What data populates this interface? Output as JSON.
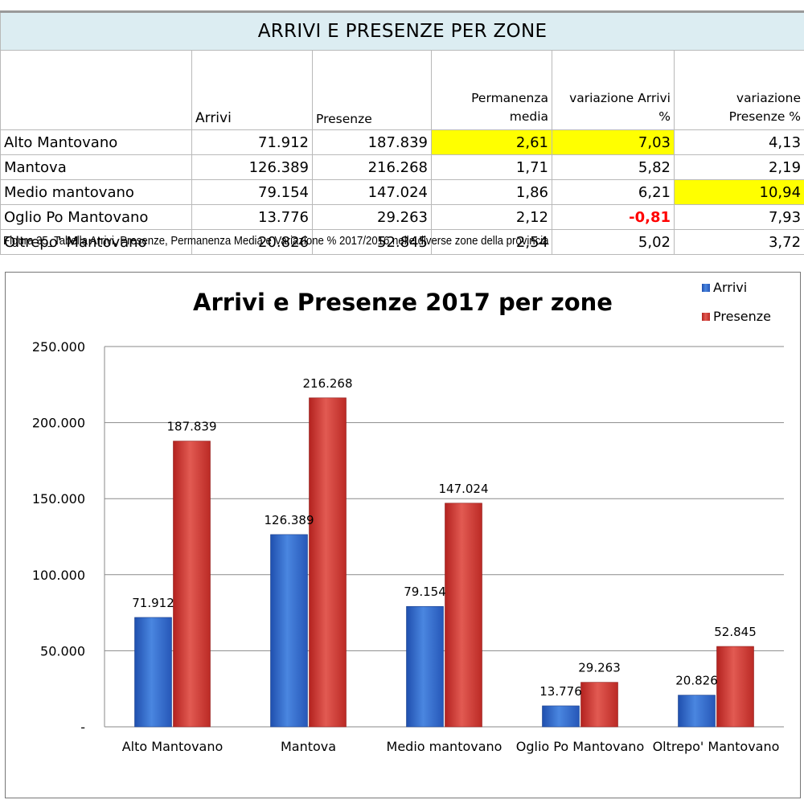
{
  "table": {
    "title": "ARRIVI E PRESENZE  PER ZONE",
    "headers": [
      "",
      "Arrivi",
      "Presenze",
      "Permanenza media",
      "variazione Arrivi %",
      "variazione Presenze %"
    ],
    "header_lines": {
      "permanenza": [
        "Permanenza",
        "media"
      ],
      "var_arrivi": [
        "variazione Arrivi",
        "%"
      ],
      "var_presenze": [
        "variazione",
        "Presenze %"
      ]
    },
    "rows": [
      {
        "zone": "Alto Mantovano",
        "arrivi": "71.912",
        "presenze": "187.839",
        "permanenza": "2,61",
        "var_arrivi": "7,03",
        "var_presenze": "4,13"
      },
      {
        "zone": "Mantova",
        "arrivi": "126.389",
        "presenze": "216.268",
        "permanenza": "1,71",
        "var_arrivi": "5,82",
        "var_presenze": "2,19"
      },
      {
        "zone": "Medio mantovano",
        "arrivi": "79.154",
        "presenze": "147.024",
        "permanenza": "1,86",
        "var_arrivi": "6,21",
        "var_presenze": "10,94"
      },
      {
        "zone": "Oglio Po Mantovano",
        "arrivi": "13.776",
        "presenze": "29.263",
        "permanenza": "2,12",
        "var_arrivi": "-0,81",
        "var_presenze": "7,93"
      },
      {
        "zone": "Oltrepo' Mantovano",
        "arrivi": "20.826",
        "presenze": "52.845",
        "permanenza": "2,54",
        "var_arrivi": "5,02",
        "var_presenze": "3,72"
      }
    ],
    "highlight_color": "#ffff00",
    "negative_color": "#ff0000"
  },
  "caption": "Figura 35_Tabella Arrivi, Presenze, Permanenza Media e Variazione % 2017/2016 nelle diverse zone della provincia",
  "chart_data": {
    "type": "bar",
    "title": "Arrivi e Presenze 2017 per zone",
    "categories": [
      "Alto Mantovano",
      "Mantova",
      "Medio mantovano",
      "Oglio Po Mantovano",
      "Oltrepo' Mantovano"
    ],
    "series": [
      {
        "name": "Arrivi",
        "values": [
          71912,
          126389,
          79154,
          13776,
          20826
        ],
        "labels": [
          "71.912",
          "126.389",
          "79.154",
          "13.776",
          "20.826"
        ],
        "color": "#3a6fcf"
      },
      {
        "name": "Presenze",
        "values": [
          187839,
          216268,
          147024,
          29263,
          52845
        ],
        "labels": [
          "187.839",
          "216.268",
          "147.024",
          "29.263",
          "52.845"
        ],
        "color": "#d23a35"
      }
    ],
    "ylim": [
      0,
      250000
    ],
    "yticks": [
      0,
      50000,
      100000,
      150000,
      200000,
      250000
    ],
    "ytick_labels": [
      "-",
      "50.000",
      "100.000",
      "150.000",
      "200.000",
      "250.000"
    ],
    "xlabel": "",
    "ylabel": "",
    "grid": true,
    "legend_position": "top-right"
  }
}
